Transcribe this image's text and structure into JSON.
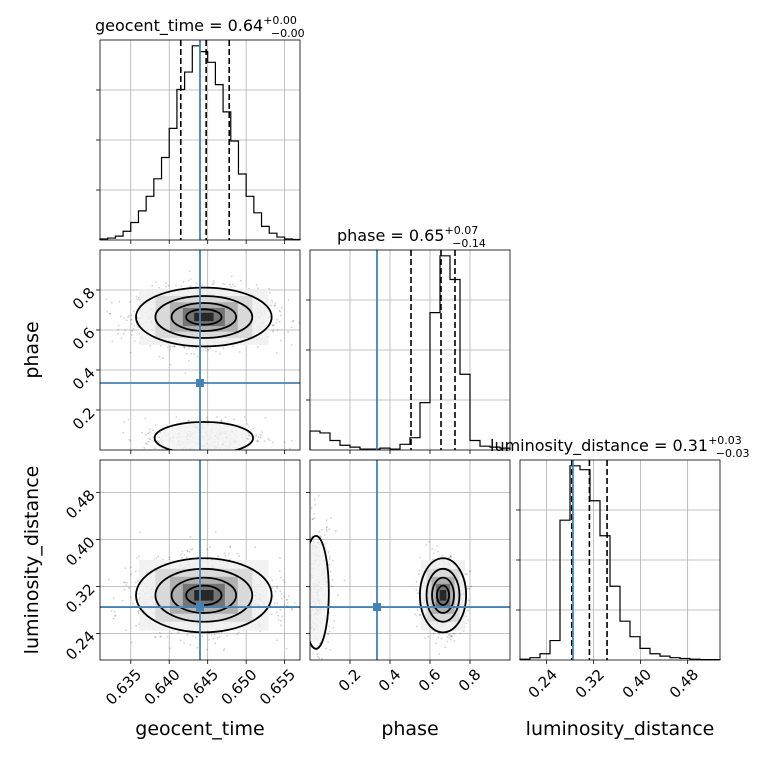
{
  "chart_data": {
    "type": "corner",
    "parameters": [
      "geocent_time",
      "phase",
      "luminosity_distance"
    ],
    "truth": {
      "geocent_time": 0.644,
      "phase": 0.335,
      "luminosity_distance": 0.285
    },
    "titles": [
      {
        "param": "geocent_time",
        "prefix": "geocent_time = ",
        "value": "0.64",
        "plus": "+0.00",
        "minus": "−0.00"
      },
      {
        "param": "phase",
        "prefix": "phase = ",
        "value": "0.65",
        "plus": "+0.07",
        "minus": "−0.14"
      },
      {
        "param": "luminosity_distance",
        "prefix": "luminosity_distance = ",
        "value": "0.31",
        "plus": "+0.03",
        "minus": "−0.03"
      }
    ],
    "axes": {
      "geocent_time": {
        "range": [
          0.631,
          0.657
        ],
        "ticks": [
          0.635,
          0.64,
          0.645,
          0.65,
          0.655
        ],
        "tick_labels": [
          "0.635",
          "0.640",
          "0.645",
          "0.650",
          "0.655"
        ]
      },
      "phase": {
        "range": [
          0.0,
          1.0
        ],
        "ticks": [
          0.2,
          0.4,
          0.6,
          0.8
        ],
        "tick_labels": [
          "0.2",
          "0.4",
          "0.6",
          "0.8"
        ]
      },
      "luminosity_distance": {
        "range": [
          0.195,
          0.535
        ],
        "ticks": [
          0.24,
          0.32,
          0.4,
          0.48
        ],
        "tick_labels": [
          "0.24",
          "0.32",
          "0.40",
          "0.48"
        ]
      }
    },
    "histograms": {
      "geocent_time": {
        "edges": [
          0.631,
          0.632,
          0.633,
          0.634,
          0.635,
          0.636,
          0.637,
          0.638,
          0.639,
          0.64,
          0.641,
          0.642,
          0.643,
          0.644,
          0.645,
          0.646,
          0.647,
          0.648,
          0.649,
          0.65,
          0.651,
          0.652,
          0.653,
          0.654,
          0.655,
          0.656,
          0.657
        ],
        "counts": [
          1,
          2,
          4,
          9,
          18,
          30,
          45,
          63,
          85,
          115,
          155,
          173,
          200,
          194,
          183,
          160,
          132,
          102,
          68,
          45,
          28,
          14,
          7,
          3,
          1,
          0.5
        ],
        "quantiles": [
          0.6415,
          0.6448,
          0.6478
        ]
      },
      "phase": {
        "edges": [
          0.0,
          0.05,
          0.1,
          0.15,
          0.2,
          0.25,
          0.3,
          0.35,
          0.4,
          0.45,
          0.5,
          0.55,
          0.6,
          0.65,
          0.7,
          0.75,
          0.8,
          0.85,
          0.9,
          0.95,
          1.0
        ],
        "counts": [
          20,
          18,
          10,
          5,
          3,
          1,
          1,
          2,
          1,
          6,
          13,
          50,
          145,
          205,
          180,
          80,
          10,
          4,
          3,
          2
        ],
        "quantiles": [
          0.505,
          0.655,
          0.725
        ]
      },
      "luminosity_distance": {
        "edges": [
          0.195,
          0.212,
          0.229,
          0.246,
          0.263,
          0.28,
          0.297,
          0.314,
          0.331,
          0.348,
          0.365,
          0.382,
          0.399,
          0.416,
          0.433,
          0.45,
          0.467,
          0.484,
          0.501,
          0.518,
          0.535
        ],
        "counts": [
          1,
          3,
          8,
          25,
          180,
          250,
          245,
          205,
          160,
          95,
          50,
          30,
          15,
          8,
          5,
          3,
          2,
          1,
          0.5,
          0.5
        ],
        "quantiles": [
          0.283,
          0.313,
          0.343
        ]
      }
    }
  }
}
